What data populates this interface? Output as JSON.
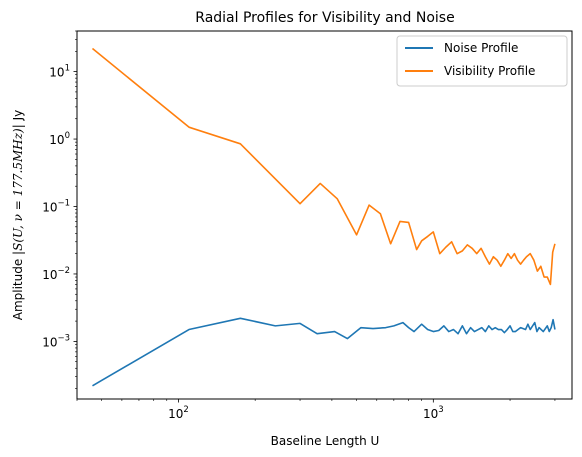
{
  "chart_data": {
    "type": "line",
    "title": "Radial Profiles for Visibility and Noise",
    "xlabel": "Baseline Length U",
    "ylabel": {
      "prefix": "Amplitude |",
      "math": "S(U, ν = 177.5MHz)",
      "suffix": "| Jy"
    },
    "xscale": "log",
    "yscale": "log",
    "xlim": [
      40,
      3500
    ],
    "ylim": [
      0.00014,
      40
    ],
    "x_ticks": [
      {
        "value": 100,
        "base": "10",
        "exp": "2"
      },
      {
        "value": 1000,
        "base": "10",
        "exp": "3"
      }
    ],
    "y_ticks": [
      {
        "value": 0.001,
        "base": "10",
        "exp": "−3"
      },
      {
        "value": 0.01,
        "base": "10",
        "exp": "−2"
      },
      {
        "value": 0.1,
        "base": "10",
        "exp": "−1"
      },
      {
        "value": 1,
        "base": "10",
        "exp": "0"
      },
      {
        "value": 10,
        "base": "10",
        "exp": "1"
      }
    ],
    "grid": false,
    "legend_position": "top-right",
    "series": [
      {
        "name": "Noise Profile",
        "color": "#1f77b4",
        "x": [
          46,
          110,
          175,
          240,
          300,
          350,
          410,
          460,
          520,
          580,
          650,
          700,
          760,
          800,
          840,
          900,
          950,
          1000,
          1050,
          1100,
          1150,
          1200,
          1250,
          1300,
          1350,
          1400,
          1450,
          1500,
          1550,
          1600,
          1650,
          1700,
          1750,
          1800,
          1850,
          1900,
          1950,
          2000,
          2050,
          2100,
          2150,
          2200,
          2300,
          2350,
          2400,
          2500,
          2550,
          2600,
          2700,
          2800,
          2850,
          2900,
          2950,
          3000
        ],
        "y": [
          0.00022,
          0.0015,
          0.0022,
          0.0017,
          0.00185,
          0.0013,
          0.0014,
          0.0011,
          0.0016,
          0.00155,
          0.0016,
          0.0017,
          0.0019,
          0.0016,
          0.0014,
          0.0018,
          0.0015,
          0.0014,
          0.00145,
          0.0017,
          0.0014,
          0.0015,
          0.0013,
          0.0017,
          0.0013,
          0.0016,
          0.0014,
          0.0015,
          0.0016,
          0.0014,
          0.0017,
          0.0015,
          0.0016,
          0.0015,
          0.0015,
          0.00135,
          0.0015,
          0.0017,
          0.0014,
          0.0014,
          0.0015,
          0.0016,
          0.0015,
          0.0018,
          0.0015,
          0.0019,
          0.0014,
          0.0016,
          0.0014,
          0.0017,
          0.0014,
          0.0016,
          0.0021,
          0.0015
        ]
      },
      {
        "name": "Visibility Profile",
        "color": "#ff7f0e",
        "x": [
          46,
          110,
          175,
          300,
          360,
          420,
          500,
          560,
          620,
          680,
          740,
          800,
          860,
          900,
          950,
          1000,
          1060,
          1120,
          1180,
          1240,
          1300,
          1360,
          1420,
          1480,
          1540,
          1600,
          1660,
          1720,
          1780,
          1840,
          1900,
          1960,
          2020,
          2080,
          2140,
          2200,
          2260,
          2320,
          2400,
          2480,
          2560,
          2640,
          2720,
          2800,
          2880,
          2940,
          3000
        ],
        "y": [
          22,
          1.5,
          0.85,
          0.11,
          0.22,
          0.13,
          0.038,
          0.105,
          0.078,
          0.028,
          0.06,
          0.058,
          0.023,
          0.031,
          0.036,
          0.042,
          0.02,
          0.025,
          0.03,
          0.02,
          0.022,
          0.027,
          0.024,
          0.02,
          0.024,
          0.018,
          0.014,
          0.018,
          0.016,
          0.013,
          0.016,
          0.02,
          0.017,
          0.02,
          0.016,
          0.014,
          0.016,
          0.018,
          0.02,
          0.016,
          0.011,
          0.013,
          0.009,
          0.009,
          0.007,
          0.021,
          0.028
        ]
      }
    ]
  }
}
